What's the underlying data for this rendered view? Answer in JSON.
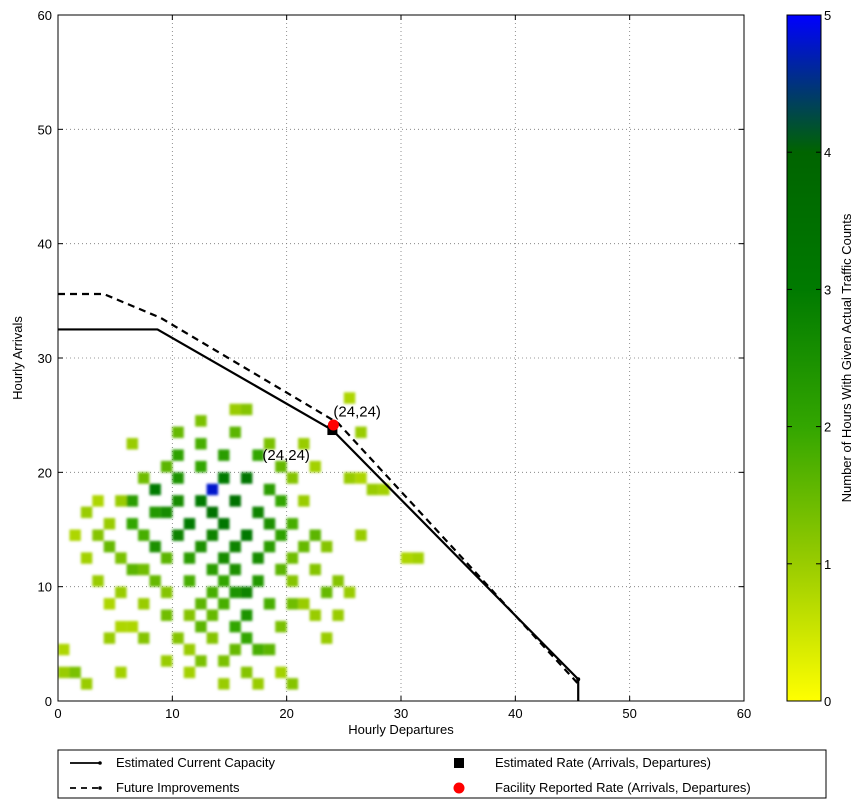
{
  "chart_data": {
    "type": "heatmap",
    "xlabel": "Hourly Departures",
    "ylabel": "Hourly Arrivals",
    "xlim": [
      0,
      60
    ],
    "ylim": [
      0,
      60
    ],
    "xticks": [
      "0",
      "10",
      "20",
      "30",
      "40",
      "50",
      "60"
    ],
    "yticks": [
      "0",
      "10",
      "20",
      "30",
      "40",
      "50",
      "60"
    ],
    "grid": true,
    "colorbar": {
      "label": "Number of Hours With Given Actual Traffic Counts",
      "range": [
        0,
        5
      ],
      "ticks": [
        "0",
        "1",
        "2",
        "3",
        "4",
        "5"
      ],
      "colors": [
        "#ffff00",
        "#99cc00",
        "#33a600",
        "#007a00",
        "#006400",
        "#0000ff"
      ]
    },
    "series": [
      {
        "name": "Estimated Current Capacity",
        "style": "solid",
        "x": [
          0,
          8.7,
          24,
          45.5,
          45.5
        ],
        "y": [
          32.5,
          32.5,
          23.7,
          1.9,
          0
        ]
      },
      {
        "name": "Future Improvements",
        "style": "dashed",
        "x": [
          0,
          4,
          9,
          24.5,
          45.5
        ],
        "y": [
          35.6,
          35.6,
          33.5,
          24.3,
          1.5
        ]
      }
    ],
    "points": [
      {
        "name": "Estimated Rate (Arrivals, Departures)",
        "marker": "square",
        "color": "#000000",
        "x": 24,
        "y": 23.7,
        "label": "(24,24)"
      },
      {
        "name": "Facility Reported Rate (Arrivals, Departures)",
        "marker": "circle",
        "color": "#ff0000",
        "x": 24,
        "y": 24.1,
        "label": "(24,24)"
      }
    ],
    "legend": {
      "placement": "bottom",
      "entries": [
        {
          "label": "Estimated Current Capacity",
          "symbol": "solid-line"
        },
        {
          "label": "Estimated Rate (Arrivals, Departures)",
          "symbol": "black-square"
        },
        {
          "label": "Future Improvements",
          "symbol": "dashed-line"
        },
        {
          "label": "Facility Reported Rate (Arrivals, Departures)",
          "symbol": "red-circle"
        }
      ]
    },
    "heatmap_cells": [
      {
        "x": 0,
        "y": 2,
        "v": 1
      },
      {
        "x": 1,
        "y": 2,
        "v": 1.3
      },
      {
        "x": 2,
        "y": 1,
        "v": 1
      },
      {
        "x": 0,
        "y": 4,
        "v": 0.8
      },
      {
        "x": 3,
        "y": 10,
        "v": 1
      },
      {
        "x": 2,
        "y": 12,
        "v": 0.9
      },
      {
        "x": 1,
        "y": 14,
        "v": 0.8
      },
      {
        "x": 2,
        "y": 16,
        "v": 1
      },
      {
        "x": 3,
        "y": 17,
        "v": 0.8
      },
      {
        "x": 3,
        "y": 14,
        "v": 1.2
      },
      {
        "x": 4,
        "y": 13,
        "v": 1.5
      },
      {
        "x": 4,
        "y": 15,
        "v": 1
      },
      {
        "x": 5,
        "y": 12,
        "v": 1.3
      },
      {
        "x": 5,
        "y": 9,
        "v": 1
      },
      {
        "x": 4,
        "y": 8,
        "v": 0.8
      },
      {
        "x": 5,
        "y": 6,
        "v": 0.8
      },
      {
        "x": 4,
        "y": 5,
        "v": 1
      },
      {
        "x": 5,
        "y": 2,
        "v": 0.9
      },
      {
        "x": 6,
        "y": 15,
        "v": 2
      },
      {
        "x": 6,
        "y": 17,
        "v": 2.2
      },
      {
        "x": 6,
        "y": 22,
        "v": 1
      },
      {
        "x": 7,
        "y": 14,
        "v": 1.8
      },
      {
        "x": 7,
        "y": 11,
        "v": 1.4
      },
      {
        "x": 6,
        "y": 11,
        "v": 1.6
      },
      {
        "x": 7,
        "y": 8,
        "v": 1
      },
      {
        "x": 6,
        "y": 6,
        "v": 0.8
      },
      {
        "x": 7,
        "y": 5,
        "v": 1.2
      },
      {
        "x": 8,
        "y": 10,
        "v": 1.5
      },
      {
        "x": 8,
        "y": 13,
        "v": 2.5
      },
      {
        "x": 8,
        "y": 16,
        "v": 2.3
      },
      {
        "x": 8,
        "y": 18,
        "v": 3
      },
      {
        "x": 9,
        "y": 16,
        "v": 2.6
      },
      {
        "x": 9,
        "y": 12,
        "v": 1.6
      },
      {
        "x": 9,
        "y": 9,
        "v": 1.2
      },
      {
        "x": 9,
        "y": 3,
        "v": 1
      },
      {
        "x": 10,
        "y": 14,
        "v": 2.8
      },
      {
        "x": 10,
        "y": 17,
        "v": 2.6
      },
      {
        "x": 10,
        "y": 19,
        "v": 2.4
      },
      {
        "x": 10,
        "y": 21,
        "v": 2.1
      },
      {
        "x": 10,
        "y": 23,
        "v": 1.5
      },
      {
        "x": 11,
        "y": 15,
        "v": 3
      },
      {
        "x": 11,
        "y": 12,
        "v": 2.2
      },
      {
        "x": 11,
        "y": 10,
        "v": 1.8
      },
      {
        "x": 11,
        "y": 7,
        "v": 1.2
      },
      {
        "x": 11,
        "y": 4,
        "v": 1
      },
      {
        "x": 11,
        "y": 2,
        "v": 0.9
      },
      {
        "x": 12,
        "y": 17,
        "v": 3
      },
      {
        "x": 12,
        "y": 13,
        "v": 2.5
      },
      {
        "x": 12,
        "y": 20,
        "v": 2
      },
      {
        "x": 12,
        "y": 24,
        "v": 1.3
      },
      {
        "x": 12,
        "y": 22,
        "v": 1.8
      },
      {
        "x": 12,
        "y": 6,
        "v": 1.6
      },
      {
        "x": 12,
        "y": 3,
        "v": 1.3
      },
      {
        "x": 13,
        "y": 18,
        "v": 4.8
      },
      {
        "x": 13,
        "y": 16,
        "v": 3.4
      },
      {
        "x": 13,
        "y": 14,
        "v": 2.8
      },
      {
        "x": 13,
        "y": 11,
        "v": 2.2
      },
      {
        "x": 13,
        "y": 9,
        "v": 1.8
      },
      {
        "x": 13,
        "y": 7,
        "v": 1.5
      },
      {
        "x": 13,
        "y": 5,
        "v": 1.2
      },
      {
        "x": 14,
        "y": 15,
        "v": 3.2
      },
      {
        "x": 14,
        "y": 19,
        "v": 3
      },
      {
        "x": 14,
        "y": 21,
        "v": 2.2
      },
      {
        "x": 14,
        "y": 12,
        "v": 2.6
      },
      {
        "x": 14,
        "y": 10,
        "v": 2
      },
      {
        "x": 14,
        "y": 8,
        "v": 1.8
      },
      {
        "x": 14,
        "y": 3,
        "v": 1.3
      },
      {
        "x": 14,
        "y": 1,
        "v": 1
      },
      {
        "x": 15,
        "y": 17,
        "v": 3.4
      },
      {
        "x": 15,
        "y": 13,
        "v": 2.8
      },
      {
        "x": 15,
        "y": 25,
        "v": 1
      },
      {
        "x": 15,
        "y": 23,
        "v": 1.6
      },
      {
        "x": 15,
        "y": 11,
        "v": 2.5
      },
      {
        "x": 15,
        "y": 6,
        "v": 2
      },
      {
        "x": 15,
        "y": 4,
        "v": 1.5
      },
      {
        "x": 16,
        "y": 19,
        "v": 3.2
      },
      {
        "x": 16,
        "y": 14,
        "v": 3.1
      },
      {
        "x": 16,
        "y": 9,
        "v": 2.8
      },
      {
        "x": 16,
        "y": 7,
        "v": 2.4
      },
      {
        "x": 16,
        "y": 5,
        "v": 2
      },
      {
        "x": 16,
        "y": 2,
        "v": 1.2
      },
      {
        "x": 16,
        "y": 25,
        "v": 1.2
      },
      {
        "x": 17,
        "y": 16,
        "v": 2.8
      },
      {
        "x": 17,
        "y": 12,
        "v": 2.6
      },
      {
        "x": 17,
        "y": 10,
        "v": 2.3
      },
      {
        "x": 17,
        "y": 21,
        "v": 2
      },
      {
        "x": 17,
        "y": 4,
        "v": 1.8
      },
      {
        "x": 17,
        "y": 1,
        "v": 1
      },
      {
        "x": 18,
        "y": 15,
        "v": 2.5
      },
      {
        "x": 18,
        "y": 18,
        "v": 2.2
      },
      {
        "x": 18,
        "y": 13,
        "v": 2.2
      },
      {
        "x": 18,
        "y": 8,
        "v": 1.8
      },
      {
        "x": 18,
        "y": 22,
        "v": 1.3
      },
      {
        "x": 19,
        "y": 17,
        "v": 2
      },
      {
        "x": 19,
        "y": 14,
        "v": 2.1
      },
      {
        "x": 19,
        "y": 11,
        "v": 1.6
      },
      {
        "x": 19,
        "y": 6,
        "v": 1.3
      },
      {
        "x": 19,
        "y": 2,
        "v": 0.9
      },
      {
        "x": 20,
        "y": 15,
        "v": 1.8
      },
      {
        "x": 20,
        "y": 12,
        "v": 1.4
      },
      {
        "x": 20,
        "y": 10,
        "v": 1.2
      },
      {
        "x": 20,
        "y": 19,
        "v": 1.2
      },
      {
        "x": 20,
        "y": 1,
        "v": 1.2
      },
      {
        "x": 21,
        "y": 13,
        "v": 1.5
      },
      {
        "x": 21,
        "y": 17,
        "v": 1
      },
      {
        "x": 21,
        "y": 8,
        "v": 1
      },
      {
        "x": 21,
        "y": 22,
        "v": 1
      },
      {
        "x": 22,
        "y": 11,
        "v": 1.2
      },
      {
        "x": 22,
        "y": 14,
        "v": 1.6
      },
      {
        "x": 22,
        "y": 7,
        "v": 1
      },
      {
        "x": 23,
        "y": 13,
        "v": 1.2
      },
      {
        "x": 23,
        "y": 9,
        "v": 1.5
      },
      {
        "x": 23,
        "y": 5,
        "v": 1
      },
      {
        "x": 24,
        "y": 10,
        "v": 1.2
      },
      {
        "x": 24,
        "y": 7,
        "v": 1
      },
      {
        "x": 25,
        "y": 26,
        "v": 0.8
      },
      {
        "x": 25,
        "y": 19,
        "v": 1
      },
      {
        "x": 26,
        "y": 23,
        "v": 1
      },
      {
        "x": 26,
        "y": 19,
        "v": 0.8
      },
      {
        "x": 27,
        "y": 18,
        "v": 1
      },
      {
        "x": 28,
        "y": 18,
        "v": 0.9
      },
      {
        "x": 30,
        "y": 12,
        "v": 0.8
      },
      {
        "x": 31,
        "y": 12,
        "v": 0.9
      },
      {
        "x": 26,
        "y": 14,
        "v": 1
      },
      {
        "x": 25,
        "y": 9,
        "v": 1
      },
      {
        "x": 19,
        "y": 20,
        "v": 1.5
      },
      {
        "x": 9,
        "y": 20,
        "v": 1.6
      },
      {
        "x": 7,
        "y": 19,
        "v": 1.4
      },
      {
        "x": 5,
        "y": 17,
        "v": 1
      },
      {
        "x": 10,
        "y": 5,
        "v": 1.2
      },
      {
        "x": 18,
        "y": 4,
        "v": 1.6
      },
      {
        "x": 20,
        "y": 8,
        "v": 1.4
      },
      {
        "x": 22,
        "y": 20,
        "v": 0.9
      },
      {
        "x": 12,
        "y": 8,
        "v": 1.6
      },
      {
        "x": 15,
        "y": 9,
        "v": 2.4
      },
      {
        "x": 9,
        "y": 7,
        "v": 1.4
      }
    ]
  }
}
